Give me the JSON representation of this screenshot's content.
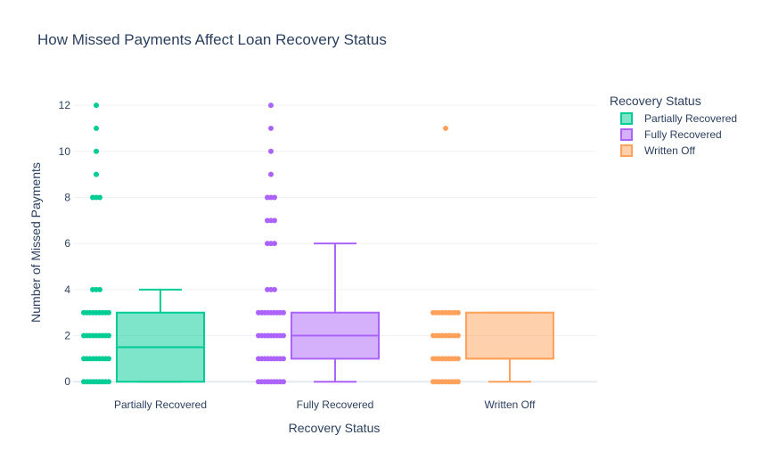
{
  "chart_data": {
    "type": "box",
    "title": "How Missed Payments Affect Loan Recovery Status",
    "xlabel": "Recovery Status",
    "ylabel": "Number of Missed Payments",
    "categories": [
      "Partially Recovered",
      "Fully Recovered",
      "Written Off"
    ],
    "ylim": [
      -0.3,
      12.7
    ],
    "yticks": [
      0,
      2,
      4,
      6,
      8,
      10,
      12
    ],
    "grid": true,
    "legend": {
      "title": "Recovery Status",
      "placement": "top-right"
    },
    "series": [
      {
        "name": "Partially Recovered",
        "color": "#00cc96",
        "min": 0,
        "q1": 0,
        "median": 1.5,
        "q3": 3,
        "max": 4,
        "points": [
          0,
          1,
          2,
          3,
          4,
          8,
          9,
          10,
          11,
          12
        ]
      },
      {
        "name": "Fully Recovered",
        "color": "#ab63fa",
        "min": 0,
        "q1": 1,
        "median": 2,
        "q3": 3,
        "max": 6,
        "points": [
          0,
          1,
          2,
          3,
          4,
          6,
          7,
          8,
          9,
          10,
          11,
          12
        ]
      },
      {
        "name": "Written Off",
        "color": "#ffa15a",
        "min": 0,
        "q1": 1,
        "median": 1,
        "q3": 3,
        "max": 3,
        "points": [
          0,
          1,
          2,
          3,
          11
        ]
      }
    ]
  }
}
